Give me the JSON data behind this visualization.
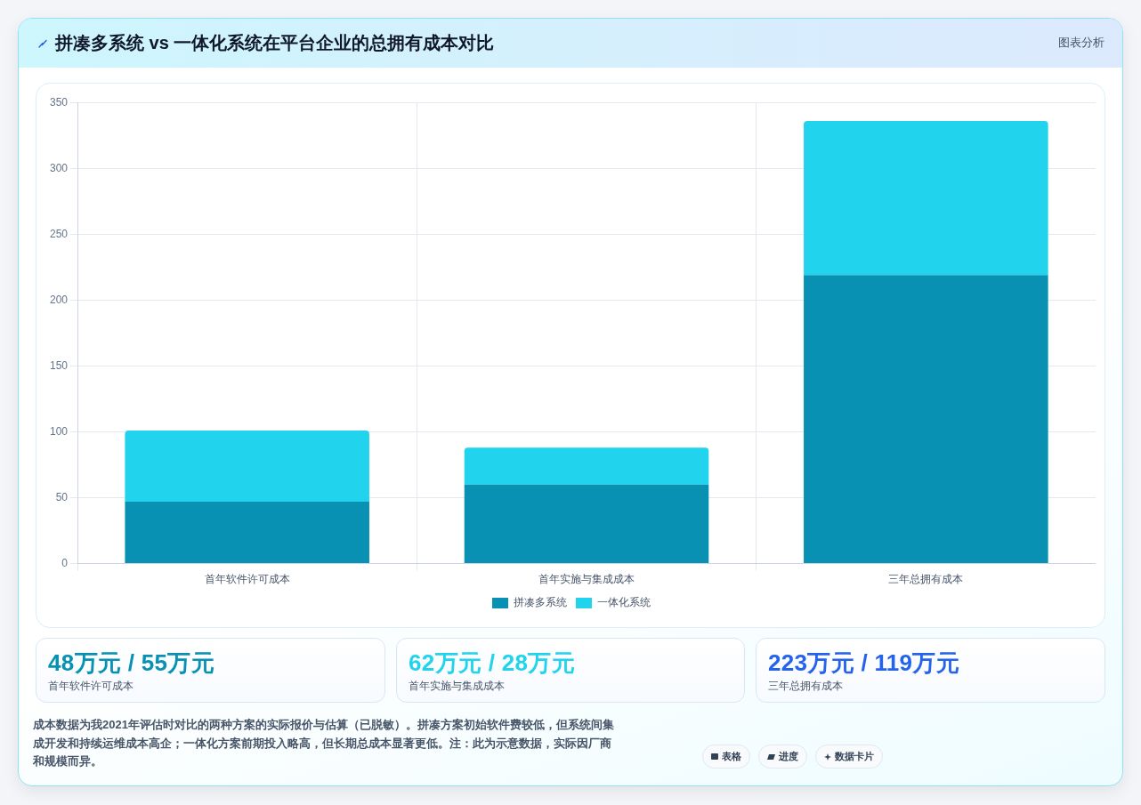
{
  "chart_data": [
    {
      "type": "bar",
      "title": "拼凑多系统 vs 一体化系统在平台企业的总拥有成本对比",
      "categories": [
        "首年软件许可成本",
        "首年实施与集成成本",
        "三年总拥有成本"
      ],
      "series": [
        {
          "name": "拼凑多系统",
          "color": "#0891b2",
          "values": [
            47,
            60,
            219
          ]
        },
        {
          "name": "一体化系统",
          "color": "#22d3ee",
          "values": [
            54,
            28,
            117
          ]
        }
      ],
      "stacked": true,
      "ylim": [
        0,
        350
      ],
      "yticks": [
        0,
        50,
        100,
        150,
        200,
        250,
        300,
        350
      ],
      "grid": true,
      "legend": "bottom",
      "annotations": [
        "图表分析",
        "成本数据为我2021年评估时对比的两种方案的实际报价与估算（已脱敏）。拼凑方案初始软件费较低，但系统间集成开发和持续运维成本高企；一体化方案前期投入略高，但长期总成本显著更低。注：此为示意数据，实际因厂商和规模而异。",
        "表格",
        "进度",
        "数据卡片"
      ]
    },
    {
      "type": "other",
      "title": "48万元 / 55万元",
      "subtitle": "首年软件许可成本",
      "color": "#0891b2"
    },
    {
      "type": "other",
      "title": "62万元 / 28万元",
      "subtitle": "首年实施与集成成本",
      "color": "#22d3ee"
    },
    {
      "type": "other",
      "title": "223万元 / 119万元",
      "subtitle": "三年总拥有成本",
      "color": "#2563eb"
    }
  ]
}
